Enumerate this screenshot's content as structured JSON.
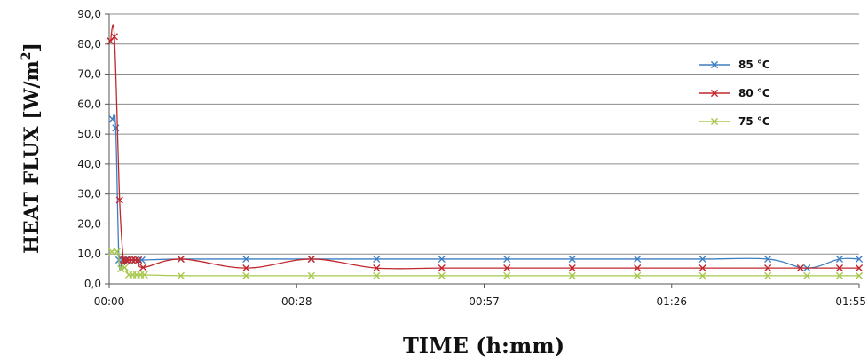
{
  "chart_data": {
    "type": "line",
    "xlabel": "TIME (h:mm)",
    "ylabel": "HEAT FLUX [W/m",
    "ylabel_sup": "2",
    "ylabel_close": "]",
    "ylim": [
      0,
      90
    ],
    "yticks": [
      0,
      10,
      20,
      30,
      40,
      50,
      60,
      70,
      80,
      90
    ],
    "ytick_labels": [
      "0,0",
      "10,0",
      "20,0",
      "30,0",
      "40,0",
      "50,0",
      "60,0",
      "70,0",
      "80,0",
      "90,0"
    ],
    "xlim": [
      0,
      115
    ],
    "xticks": [
      0,
      28.75,
      57.5,
      86.25,
      115
    ],
    "xtick_labels": [
      "00:00",
      "00:28",
      "00:57",
      "01:26",
      "01:55"
    ],
    "grid": true,
    "legend_position": "right",
    "series": [
      {
        "name": "85 °C",
        "color": "#3f7fc1",
        "x": [
          0.5,
          1.0,
          1.5,
          2.0,
          2.5,
          3.0,
          3.5,
          4.0,
          4.5,
          5.0,
          11,
          21,
          31,
          41,
          51,
          61,
          71,
          81,
          91,
          101,
          107,
          112,
          115
        ],
        "y": [
          55,
          52,
          8,
          8,
          8,
          8,
          8,
          8,
          8,
          8,
          8.3,
          8.3,
          8.3,
          8.3,
          8.3,
          8.3,
          8.3,
          8.3,
          8.3,
          8.3,
          5.3,
          8.3,
          8.3
        ]
      },
      {
        "name": "80 °C",
        "color": "#c0282d",
        "x": [
          0.2,
          0.8,
          1.6,
          2.2,
          2.6,
          3.0,
          3.5,
          4.0,
          4.5,
          5.2,
          11,
          21,
          31,
          41,
          51,
          61,
          71,
          81,
          91,
          101,
          106,
          112,
          115
        ],
        "y": [
          81,
          82.5,
          28,
          8,
          8,
          8,
          8,
          8,
          8,
          5.5,
          8.3,
          5.3,
          8.3,
          5.3,
          5.3,
          5.3,
          5.3,
          5.3,
          5.3,
          5.3,
          5.3,
          5.3,
          5.3
        ]
      },
      {
        "name": "75 °C",
        "color": "#a8c84e",
        "x": [
          0.4,
          1.2,
          1.8,
          2.4,
          3.0,
          3.6,
          4.2,
          4.8,
          5.4,
          11,
          21,
          31,
          41,
          51,
          61,
          71,
          81,
          91,
          101,
          107,
          112,
          115
        ],
        "y": [
          10.8,
          10.8,
          5,
          5.5,
          3,
          3,
          3,
          3,
          3,
          2.7,
          2.7,
          2.7,
          2.7,
          2.7,
          2.7,
          2.7,
          2.7,
          2.7,
          2.7,
          2.7,
          2.7,
          2.7
        ]
      }
    ]
  }
}
